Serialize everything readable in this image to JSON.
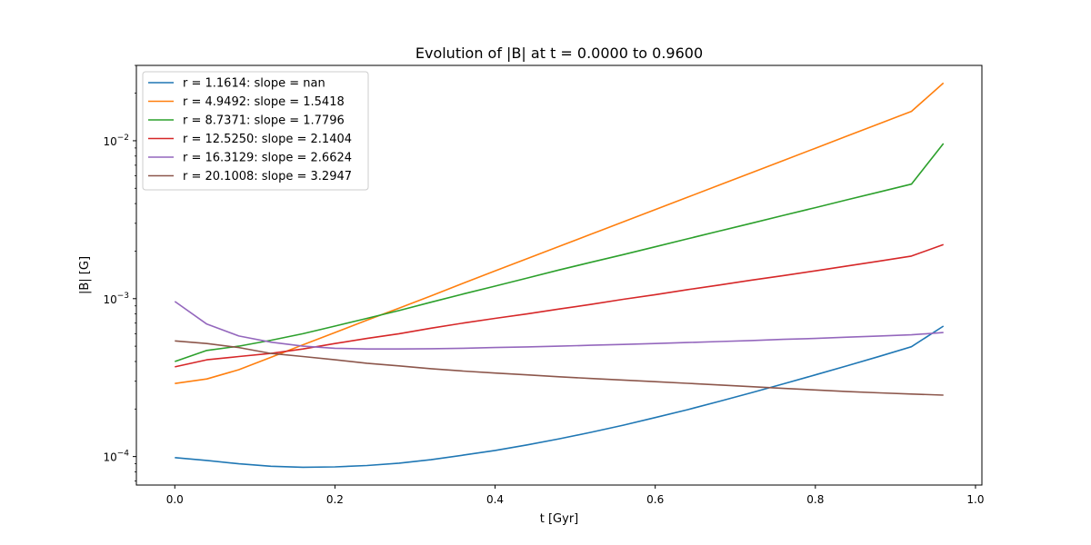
{
  "chart_data": {
    "type": "line",
    "title": "Evolution of |B| at t = 0.0000 to 0.9600",
    "xlabel": "t [Gyr]",
    "ylabel": "|B| [G]",
    "xlim": [
      -0.048,
      1.008
    ],
    "ylim": [
      6.6e-05,
      0.03
    ],
    "yscale": "log",
    "x_ticks": [
      0.0,
      0.2,
      0.4,
      0.6,
      0.8,
      1.0
    ],
    "x_tick_labels": [
      "0.0",
      "0.2",
      "0.4",
      "0.6",
      "0.8",
      "1.0"
    ],
    "y_major_ticks": [
      0.0001,
      0.001,
      0.01
    ],
    "y_tick_labels": [
      {
        "base": "10",
        "exp": "−4"
      },
      {
        "base": "10",
        "exp": "−3"
      },
      {
        "base": "10",
        "exp": "−2"
      }
    ],
    "legend_position": "upper-left",
    "grid": false,
    "x": [
      0.0,
      0.04,
      0.08,
      0.12,
      0.16,
      0.2,
      0.24,
      0.28,
      0.32,
      0.36,
      0.4,
      0.44,
      0.48,
      0.52,
      0.56,
      0.6,
      0.64,
      0.68,
      0.72,
      0.76,
      0.8,
      0.84,
      0.88,
      0.92,
      0.96
    ],
    "series": [
      {
        "name": "r = 1.1614: slope = nan",
        "color": "#1f77b4",
        "values": [
          9.85e-05,
          9.45e-05,
          9e-05,
          8.68e-05,
          8.56e-05,
          8.6e-05,
          8.77e-05,
          9.08e-05,
          9.55e-05,
          0.000102,
          0.0001093,
          0.0001185,
          0.0001296,
          0.0001425,
          0.000158,
          0.0001765,
          0.000198,
          0.0002235,
          0.0002535,
          0.0002885,
          0.000329,
          0.000376,
          0.000431,
          0.000496,
          0.00067
        ]
      },
      {
        "name": "r = 4.9492: slope = 1.5418",
        "color": "#ff7f0e",
        "values": [
          0.00029,
          0.00031,
          0.000355,
          0.000425,
          0.00051,
          0.00061,
          0.00073,
          0.00087,
          0.00104,
          0.00125,
          0.0015,
          0.00179,
          0.00214,
          0.00256,
          0.00306,
          0.00366,
          0.00438,
          0.00524,
          0.00627,
          0.0075,
          0.00897,
          0.01073,
          0.01283,
          0.01535,
          0.0232
        ]
      },
      {
        "name": "r = 8.7371: slope = 1.7796",
        "color": "#2ca02c",
        "values": [
          0.0004,
          0.00047,
          0.0005,
          0.000545,
          0.0006,
          0.00067,
          0.00075,
          0.00084,
          0.00095,
          0.00107,
          0.0012,
          0.00135,
          0.00152,
          0.0017,
          0.0019,
          0.00213,
          0.00239,
          0.00268,
          0.003,
          0.00337,
          0.00377,
          0.00423,
          0.00474,
          0.00531,
          0.0096
        ]
      },
      {
        "name": "r = 12.5250: slope = 2.1404",
        "color": "#d62728",
        "values": [
          0.00037,
          0.00041,
          0.00043,
          0.00045,
          0.00048,
          0.00052,
          0.00056,
          0.0006,
          0.00065,
          0.0007,
          0.00075,
          0.0008,
          0.00086,
          0.00092,
          0.00099,
          0.00106,
          0.00114,
          0.00122,
          0.00131,
          0.0014,
          0.0015,
          0.00161,
          0.00173,
          0.00186,
          0.0022
        ]
      },
      {
        "name": "r = 16.3129: slope = 2.6624",
        "color": "#9467bd",
        "values": [
          0.00096,
          0.00069,
          0.00058,
          0.00053,
          0.0005,
          0.000485,
          0.00048,
          0.00048,
          0.000482,
          0.000485,
          0.00049,
          0.000495,
          0.0005,
          0.000507,
          0.000513,
          0.00052,
          0.000527,
          0.000535,
          0.000543,
          0.000552,
          0.00056,
          0.00057,
          0.00058,
          0.00059,
          0.00061
        ]
      },
      {
        "name": "r = 20.1008: slope = 3.2947",
        "color": "#8c564b",
        "values": [
          0.00054,
          0.00052,
          0.00049,
          0.00045,
          0.00043,
          0.00041,
          0.00039,
          0.000375,
          0.00036,
          0.000348,
          0.000338,
          0.000329,
          0.00032,
          0.000312,
          0.000305,
          0.000298,
          0.000291,
          0.000284,
          0.000277,
          0.00027,
          0.000264,
          0.000258,
          0.000253,
          0.000249,
          0.000245
        ]
      }
    ]
  }
}
